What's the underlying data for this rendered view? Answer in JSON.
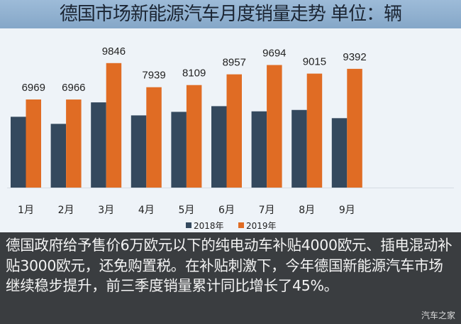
{
  "title": "德国市场新能源汽车月度销量走势  单位：辆",
  "chart_data": {
    "type": "bar",
    "title": "德国市场新能源汽车月度销量走势  单位：辆",
    "categories": [
      "1月",
      "2月",
      "3月",
      "4月",
      "5月",
      "6月",
      "7月",
      "8月",
      "9月"
    ],
    "series": [
      {
        "name": "2018年",
        "color": "#34495e",
        "values": [
          5600,
          5040,
          6740,
          5710,
          5990,
          6440,
          6030,
          6140,
          5490
        ],
        "labeled": false
      },
      {
        "name": "2019年",
        "color": "#e06c24",
        "values": [
          6969,
          6966,
          9846,
          7939,
          8109,
          8957,
          9694,
          9015,
          9392
        ],
        "labeled": true
      }
    ],
    "ylim": [
      0,
      11000
    ],
    "grid": false,
    "legend": "bottom"
  },
  "note": "德国政府给予售价6万欧元以下的纯电动车补贴4000欧元、插电混动补贴3000欧元，还免购置税。在补贴刺激下，今年德国新能源汽车市场继续稳步提升，前三季度销量累计同比增长了45%。",
  "brand": "汽车之家"
}
